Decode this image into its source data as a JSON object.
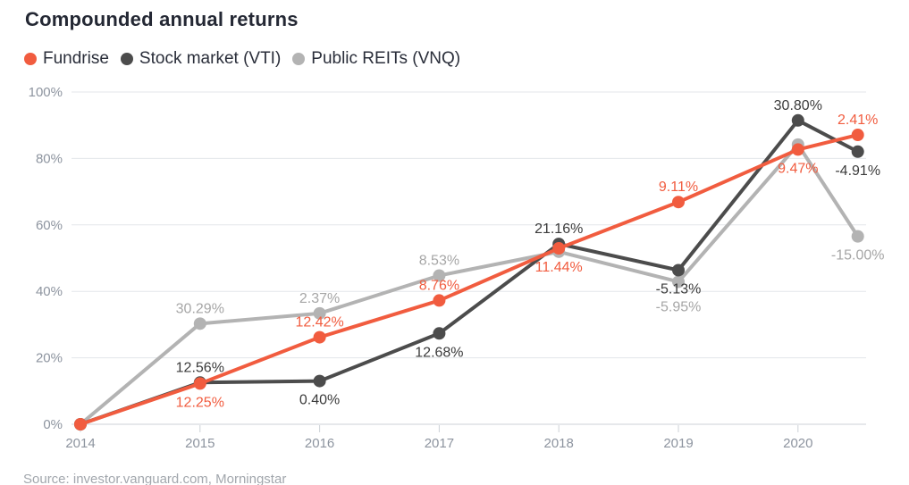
{
  "footer": {
    "source": "Source: investor.vanguard.com, Morningstar"
  },
  "chart_data": {
    "type": "line",
    "title": "Compounded annual returns",
    "x": [
      2014,
      2015,
      2016,
      2017,
      2018,
      2019,
      2020,
      2020.5
    ],
    "x_tick_labels": [
      "2014",
      "2015",
      "2016",
      "2017",
      "2018",
      "2019",
      "2020"
    ],
    "y_ticks": [
      0,
      20,
      40,
      60,
      80,
      100
    ],
    "y_tick_labels": [
      "0%",
      "20%",
      "40%",
      "60%",
      "80%",
      "100%"
    ],
    "ylim": [
      0,
      100
    ],
    "grid": true,
    "legend_position": "top-left",
    "grid_color": "#e3e6ea",
    "axis_line_color": "#ccd1d7",
    "axis_text_color": "#8d949f",
    "series": [
      {
        "name": "Fundrise",
        "color": "#F15C3F",
        "label_color": "#F15C3F",
        "cumulative_values": [
          0,
          12.25,
          26.19,
          37.25,
          52.95,
          66.88,
          82.69,
          87.09
        ],
        "annual_return_labels": [
          "",
          "12.25%",
          "12.42%",
          "8.76%",
          "11.44%",
          "9.11%",
          "9.47%",
          "2.41%"
        ],
        "label_side": [
          "",
          "below",
          "above",
          "above",
          "below",
          "above",
          "below",
          "above"
        ]
      },
      {
        "name": "Stock market (VTI)",
        "color": "#4C4C4C",
        "label_color": "#3B3B3B",
        "cumulative_values": [
          0,
          12.56,
          13.01,
          27.34,
          54.28,
          46.37,
          91.45,
          82.05
        ],
        "annual_return_labels": [
          "",
          "12.56%",
          "0.40%",
          "12.68%",
          "21.16%",
          "-5.13%",
          "30.80%",
          "-4.91%"
        ],
        "label_side": [
          "",
          "above",
          "below",
          "below",
          "above",
          "below",
          "above",
          "below"
        ]
      },
      {
        "name": "Public REITs (VNQ)",
        "color": "#B3B3B3",
        "label_color": "#A6A6A6",
        "cumulative_values": [
          0,
          30.29,
          33.38,
          44.76,
          51.92,
          42.88,
          84.18,
          56.55
        ],
        "annual_return_labels": [
          "",
          "30.29%",
          "2.37%",
          "8.53%",
          "",
          "-5.95%",
          "",
          "-15.00%"
        ],
        "label_side": [
          "",
          "above",
          "above",
          "above",
          "",
          "below2",
          "",
          "below"
        ]
      }
    ]
  }
}
